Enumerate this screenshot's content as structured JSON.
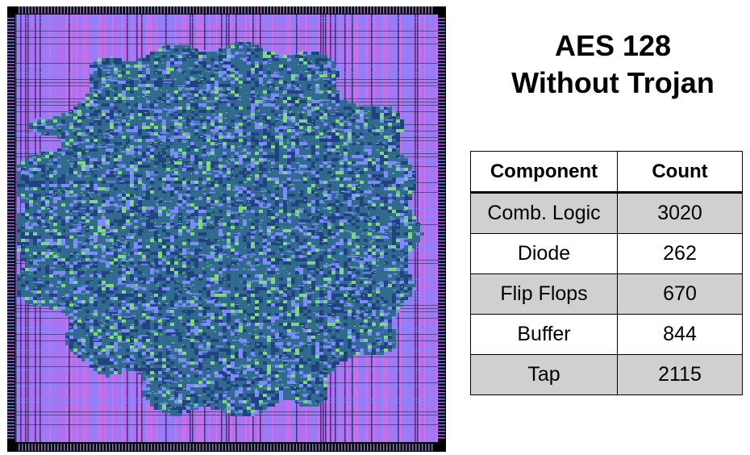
{
  "title": {
    "line1": "AES 128",
    "line2": "Without Trojan"
  },
  "layout_image": {
    "icon": "chip-layout-image",
    "colors": {
      "background": "#000000",
      "metal_purple": "#b070f0",
      "metal_blue": "#7a8cff",
      "metal_pink": "#e070e0",
      "cells_teal": "#2a6a8a",
      "cells_navy": "#1a3f7a",
      "vias_green": "#7fdc7f"
    }
  },
  "table": {
    "headers": {
      "component": "Component",
      "count": "Count"
    },
    "rows": [
      {
        "component": "Comb. Logic",
        "count": "3020"
      },
      {
        "component": "Diode",
        "count": "262"
      },
      {
        "component": "Flip Flops",
        "count": "670"
      },
      {
        "component": "Buffer",
        "count": "844"
      },
      {
        "component": "Tap",
        "count": "2115"
      }
    ],
    "colors": {
      "shaded_row": "#d0d0d0",
      "plain_row": "#ffffff",
      "border": "#000000"
    }
  }
}
